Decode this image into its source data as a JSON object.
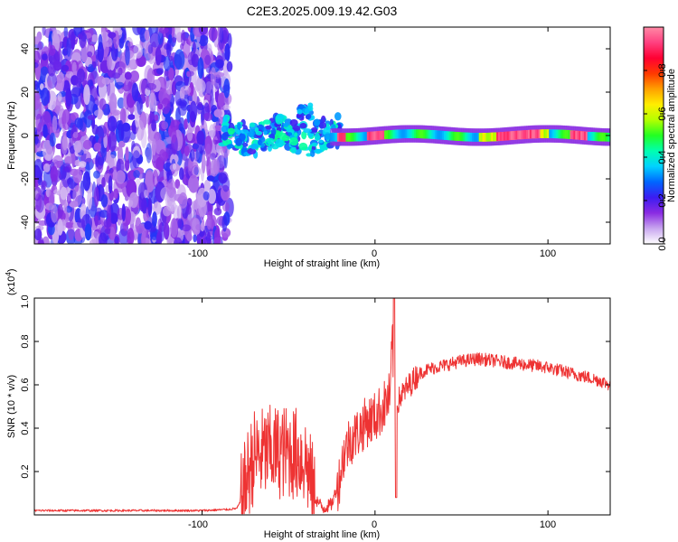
{
  "chart_data": [
    {
      "type": "heatmap",
      "title": "C2E3.2025.009.19.42.G03",
      "xlabel": "Height of straight line (km)",
      "ylabel": "Frequency (Hz)",
      "xlim": [
        -197,
        136
      ],
      "ylim": [
        -50,
        50
      ],
      "xticks": [
        -100,
        0,
        100
      ],
      "yticks": [
        -40,
        -20,
        0,
        20,
        40
      ],
      "colorbar": {
        "label": "Normalized spectral amplitude",
        "range": [
          0,
          1
        ],
        "ticks": [
          0.0,
          0.2,
          0.4,
          0.6,
          0.8
        ],
        "colors": [
          "#ffffff",
          "#c8a6ef",
          "#8a2be2",
          "#3c1cf2",
          "#0066ff",
          "#00d2ff",
          "#00ffb0",
          "#22ff22",
          "#b4ff00",
          "#ffee00",
          "#ffa000",
          "#ff3a00",
          "#ff0033",
          "#ff4080",
          "#ff8aa6"
        ],
        "tick_labels": [
          "0.0",
          "0.2",
          "0.4",
          "0.6",
          "0.8"
        ]
      },
      "features": {
        "noise_region_x": [
          -197,
          -88
        ],
        "transition_region_x": [
          -88,
          -20
        ],
        "signal_frequency_hz": 0,
        "signal_band_halfwidth_hz": 2,
        "blob_near_x": -40,
        "blob_near_freq": 11
      },
      "xtick_labels": [
        "-100",
        "0",
        "100"
      ],
      "ytick_labels": [
        "-40",
        "-20",
        "0",
        "20",
        "40"
      ]
    },
    {
      "type": "line",
      "xlabel": "Height of straight line (km)",
      "ylabel": "SNR (10 * v/v)",
      "y_multiplier": "(x10",
      "y_multiplier_exp": "4",
      "y_multiplier_close": ")",
      "xlim": [
        -197,
        136
      ],
      "ylim": [
        0,
        1.0
      ],
      "xticks": [
        -100,
        0,
        100
      ],
      "yticks": [
        0.2,
        0.4,
        0.6,
        0.8,
        1.0
      ],
      "xtick_labels": [
        "-100",
        "0",
        "100"
      ],
      "ytick_labels": [
        "0.2",
        "0.4",
        "0.6",
        "0.8",
        "1.0"
      ],
      "color": "#ee3333",
      "series": [
        {
          "name": "SNR",
          "x": [
            -197,
            -150,
            -100,
            -85,
            -80,
            -77,
            -73,
            -70,
            -60,
            -50,
            -45,
            -40,
            -35,
            -30,
            -25,
            -21,
            -18,
            -15,
            -10,
            -5,
            0,
            5,
            9,
            10,
            11,
            12,
            15,
            20,
            25,
            30,
            40,
            50,
            60,
            70,
            80,
            90,
            100,
            110,
            120,
            130,
            136
          ],
          "y": [
            0.02,
            0.02,
            0.02,
            0.025,
            0.03,
            0.07,
            0.2,
            0.27,
            0.29,
            0.29,
            0.28,
            0.25,
            0.08,
            0.03,
            0.05,
            0.15,
            0.28,
            0.34,
            0.38,
            0.43,
            0.45,
            0.5,
            0.55,
            0.85,
            0.55,
            0.5,
            0.55,
            0.6,
            0.65,
            0.67,
            0.69,
            0.71,
            0.72,
            0.71,
            0.7,
            0.69,
            0.68,
            0.66,
            0.64,
            0.62,
            0.6
          ]
        }
      ]
    }
  ]
}
